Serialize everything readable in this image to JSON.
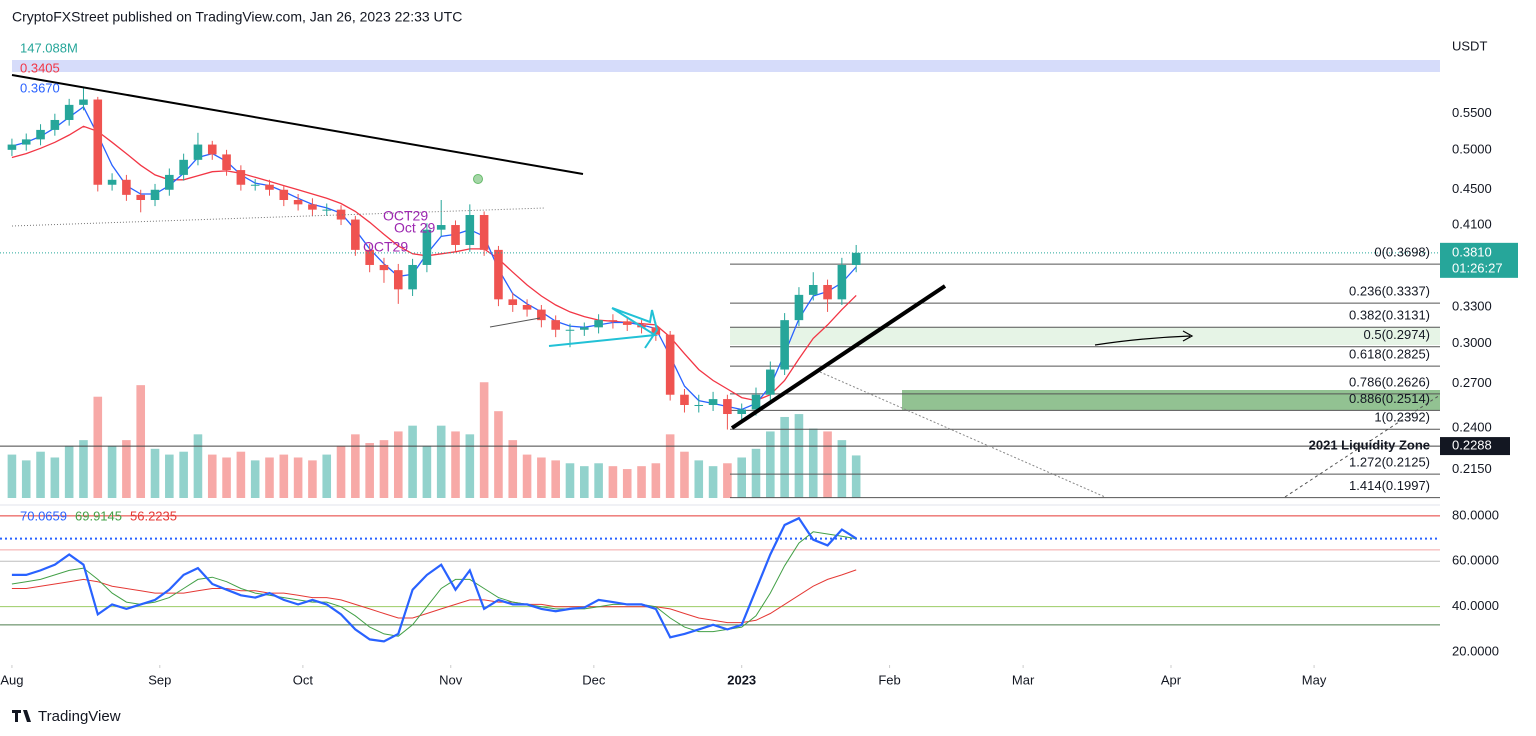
{
  "brand": "TradingView",
  "chart_data": {
    "type": "candlestick",
    "title": "CryptoFXStreet published on TradingView.com, Jan 26, 2023 22:33 UTC",
    "y_axis_label": "USDT",
    "log_scale": true,
    "grid": false,
    "up_color": "#26a69a",
    "down_color": "#ef5350",
    "xlim": [
      -2.5,
      299.4
    ],
    "xticks": [
      {
        "value": 0,
        "label": "Aug"
      },
      {
        "value": 31,
        "label": "Sep"
      },
      {
        "value": 61,
        "label": "Oct"
      },
      {
        "value": 92,
        "label": "Nov"
      },
      {
        "value": 122,
        "label": "Dec"
      },
      {
        "value": 153,
        "label": "2023"
      },
      {
        "value": 184,
        "label": "Feb"
      },
      {
        "value": 212,
        "label": "Mar"
      },
      {
        "value": 243,
        "label": "Apr"
      },
      {
        "value": 273,
        "label": "May"
      }
    ],
    "ylim": [
      0.1995,
      0.677
    ],
    "yticks": [
      {
        "value": 0.55,
        "label": "0.5500"
      },
      {
        "value": 0.5,
        "label": "0.5000"
      },
      {
        "value": 0.45,
        "label": "0.4500"
      },
      {
        "value": 0.41,
        "label": "0.4100"
      },
      {
        "value": 0.33,
        "label": "0.3300"
      },
      {
        "value": 0.3,
        "label": "0.3000"
      },
      {
        "value": 0.27,
        "label": "0.2700"
      },
      {
        "value": 0.24,
        "label": "0.2400"
      },
      {
        "value": 0.215,
        "label": "0.2150"
      }
    ],
    "x": [
      0,
      3,
      6,
      9,
      12,
      15,
      18,
      21,
      24,
      27,
      30,
      33,
      36,
      39,
      42,
      45,
      48,
      51,
      54,
      57,
      60,
      63,
      66,
      69,
      72,
      75,
      78,
      81,
      84,
      87,
      90,
      93,
      96,
      99,
      102,
      105,
      108,
      111,
      114,
      117,
      120,
      123,
      126,
      129,
      132,
      135,
      138,
      141,
      144,
      147,
      150,
      153,
      156,
      159,
      162,
      165,
      168,
      171,
      174,
      177
    ],
    "open": [
      0.5,
      0.507,
      0.514,
      0.527,
      0.541,
      0.563,
      0.571,
      0.456,
      0.462,
      0.444,
      0.438,
      0.45,
      0.468,
      0.487,
      0.507,
      0.494,
      0.474,
      0.456,
      0.456,
      0.45,
      0.438,
      0.433,
      0.427,
      0.427,
      0.416,
      0.384,
      0.369,
      0.364,
      0.346,
      0.369,
      0.405,
      0.41,
      0.389,
      0.421,
      0.384,
      0.337,
      0.332,
      0.328,
      0.319,
      0.311,
      0.311,
      0.313,
      0.319,
      0.318,
      0.315,
      0.313,
      0.307,
      0.262,
      0.255,
      0.255,
      0.259,
      0.249,
      0.252,
      0.262,
      0.28,
      0.319,
      0.341,
      0.35,
      0.337,
      0.369
    ],
    "high": [
      0.515,
      0.522,
      0.535,
      0.55,
      0.572,
      0.589,
      0.575,
      0.47,
      0.468,
      0.45,
      0.457,
      0.476,
      0.495,
      0.523,
      0.512,
      0.5,
      0.48,
      0.463,
      0.462,
      0.455,
      0.445,
      0.44,
      0.434,
      0.432,
      0.42,
      0.39,
      0.376,
      0.37,
      0.375,
      0.412,
      0.438,
      0.415,
      0.433,
      0.425,
      0.388,
      0.343,
      0.337,
      0.332,
      0.323,
      0.316,
      0.317,
      0.324,
      0.324,
      0.322,
      0.319,
      0.317,
      0.31,
      0.266,
      0.262,
      0.264,
      0.262,
      0.256,
      0.267,
      0.286,
      0.325,
      0.348,
      0.362,
      0.355,
      0.376,
      0.389
    ],
    "low": [
      0.492,
      0.499,
      0.506,
      0.519,
      0.533,
      0.555,
      0.448,
      0.449,
      0.437,
      0.424,
      0.431,
      0.443,
      0.461,
      0.48,
      0.487,
      0.467,
      0.449,
      0.449,
      0.443,
      0.431,
      0.426,
      0.42,
      0.42,
      0.41,
      0.378,
      0.362,
      0.352,
      0.333,
      0.34,
      0.362,
      0.398,
      0.382,
      0.382,
      0.378,
      0.331,
      0.326,
      0.322,
      0.313,
      0.305,
      0.297,
      0.306,
      0.308,
      0.312,
      0.31,
      0.308,
      0.302,
      0.258,
      0.25,
      0.25,
      0.251,
      0.239,
      0.245,
      0.248,
      0.258,
      0.276,
      0.314,
      0.336,
      0.326,
      0.332,
      0.362
    ],
    "close": [
      0.507,
      0.514,
      0.527,
      0.541,
      0.563,
      0.571,
      0.456,
      0.462,
      0.444,
      0.438,
      0.45,
      0.468,
      0.487,
      0.507,
      0.494,
      0.474,
      0.456,
      0.456,
      0.45,
      0.438,
      0.433,
      0.427,
      0.427,
      0.416,
      0.384,
      0.369,
      0.364,
      0.346,
      0.369,
      0.405,
      0.41,
      0.389,
      0.421,
      0.384,
      0.337,
      0.332,
      0.328,
      0.319,
      0.311,
      0.311,
      0.313,
      0.319,
      0.318,
      0.315,
      0.313,
      0.307,
      0.262,
      0.255,
      0.255,
      0.259,
      0.249,
      0.252,
      0.262,
      0.28,
      0.319,
      0.341,
      0.35,
      0.337,
      0.369,
      0.381
    ],
    "volume": {
      "ylim": [
        0,
        1600
      ],
      "legend_label": "147.088M",
      "color": "#26a69a",
      "values": [
        150,
        130,
        160,
        140,
        180,
        200,
        350,
        180,
        200,
        390,
        170,
        150,
        160,
        220,
        150,
        140,
        160,
        130,
        140,
        150,
        140,
        130,
        150,
        180,
        220,
        190,
        200,
        230,
        250,
        180,
        250,
        230,
        220,
        400,
        300,
        200,
        150,
        140,
        130,
        120,
        110,
        120,
        110,
        100,
        110,
        120,
        220,
        160,
        130,
        110,
        120,
        140,
        170,
        230,
        280,
        290,
        240,
        230,
        200,
        147.088
      ]
    },
    "moving_averages": [
      {
        "color": "#f23645",
        "legend_label": "0.3405",
        "values": [
          0.49,
          0.495,
          0.502,
          0.51,
          0.52,
          0.532,
          0.525,
          0.51,
          0.495,
          0.48,
          0.468,
          0.462,
          0.462,
          0.467,
          0.472,
          0.473,
          0.47,
          0.465,
          0.46,
          0.455,
          0.45,
          0.445,
          0.44,
          0.434,
          0.425,
          0.413,
          0.4,
          0.388,
          0.38,
          0.378,
          0.38,
          0.382,
          0.385,
          0.385,
          0.375,
          0.362,
          0.35,
          0.34,
          0.332,
          0.326,
          0.322,
          0.319,
          0.318,
          0.317,
          0.316,
          0.315,
          0.305,
          0.292,
          0.28,
          0.272,
          0.266,
          0.26,
          0.258,
          0.262,
          0.272,
          0.288,
          0.304,
          0.315,
          0.328,
          0.3405
        ]
      },
      {
        "color": "#2962ff",
        "legend_label": "0.3670",
        "values": [
          0.505,
          0.51,
          0.518,
          0.53,
          0.545,
          0.56,
          0.52,
          0.48,
          0.455,
          0.445,
          0.445,
          0.455,
          0.47,
          0.49,
          0.495,
          0.485,
          0.468,
          0.458,
          0.455,
          0.448,
          0.44,
          0.433,
          0.429,
          0.423,
          0.405,
          0.385,
          0.37,
          0.358,
          0.36,
          0.38,
          0.398,
          0.4,
          0.405,
          0.398,
          0.365,
          0.342,
          0.333,
          0.326,
          0.318,
          0.314,
          0.313,
          0.315,
          0.317,
          0.317,
          0.315,
          0.312,
          0.29,
          0.268,
          0.258,
          0.256,
          0.254,
          0.252,
          0.256,
          0.268,
          0.292,
          0.32,
          0.34,
          0.344,
          0.352,
          0.367
        ]
      }
    ],
    "current_price": {
      "value": 0.381,
      "label": "0.3810",
      "countdown": "01:26:27",
      "color": "#26a69a"
    },
    "liquidity_zone": {
      "label": "2021 Liquidity Zone",
      "value": 0.2288
    },
    "fib": {
      "color": "#555555",
      "values": [
        0.3698,
        0.3337,
        0.3131,
        0.2974,
        0.2825,
        0.2626,
        0.2514,
        0.2392,
        0.2125,
        0.1997
      ],
      "value_labels": [
        "0(0.3698)",
        "0.236(0.3337)",
        "0.382(0.3131)",
        "0.5(0.2974)",
        "0.618(0.2825)",
        "0.786(0.2626)",
        "0.886(0.2514)",
        "1(0.2392)",
        "1.272(0.2125)",
        "1.414(0.1997)"
      ]
    },
    "annotations": [
      "OCT29",
      "Oct 29",
      "OCT29"
    ],
    "rsi": {
      "ylim": [
        14.3,
        84.8
      ],
      "yticks": [
        {
          "value": 80,
          "label": "80.0000"
        },
        {
          "value": 60,
          "label": "60.0000"
        },
        {
          "value": 40,
          "label": "40.0000"
        },
        {
          "value": 20,
          "label": "20.0000"
        }
      ],
      "levels": [
        80,
        70,
        65,
        60,
        40,
        32
      ],
      "level_colors": [
        "#e53935",
        "#2962ff",
        "#f4a6a6",
        "#bdbdbd",
        "#9ccc65",
        "#4e7d4e"
      ],
      "series": [
        {
          "color": "#2962ff",
          "values": [
            54,
            54,
            56,
            58.5,
            63,
            58.5,
            36.6,
            41,
            39,
            41,
            43,
            47.5,
            54,
            57,
            50,
            47.5,
            45,
            44,
            46,
            43,
            41,
            43,
            41,
            36.6,
            30,
            25.6,
            24.7,
            28,
            47.5,
            54,
            58.5,
            47.5,
            56,
            39,
            43,
            41,
            41,
            39,
            38,
            39,
            39.6,
            43,
            42,
            41,
            41,
            39,
            26.5,
            28,
            30,
            32,
            30,
            32,
            47.5,
            63,
            76,
            79,
            69.5,
            67,
            74,
            70.0659
          ]
        },
        {
          "color": "#43a047",
          "values": [
            50,
            51,
            52,
            54,
            56,
            57,
            52,
            46,
            42,
            41,
            42,
            44,
            48,
            52,
            53,
            51,
            48,
            46,
            45,
            44,
            43,
            42,
            42,
            40,
            36,
            31,
            28,
            27,
            32,
            40,
            48,
            52,
            52,
            48,
            44,
            42,
            41,
            40,
            39,
            39,
            39,
            40,
            41,
            41,
            41,
            40,
            35,
            31,
            29,
            29,
            30,
            31,
            36,
            46,
            58,
            68,
            73,
            72,
            71,
            69.9145
          ]
        },
        {
          "color": "#e53935",
          "values": [
            48,
            48,
            49,
            50,
            51,
            52,
            51,
            49,
            48,
            47,
            46,
            46,
            46,
            47,
            48,
            48,
            47,
            47,
            46,
            46,
            45,
            44,
            44,
            43,
            41,
            39,
            37,
            35,
            35,
            37,
            39,
            41,
            43,
            43,
            42,
            42,
            41,
            41,
            40,
            40,
            40,
            40,
            40,
            40,
            40,
            40,
            39,
            37,
            35,
            34,
            33,
            33,
            34,
            37,
            41,
            45,
            49,
            52,
            54,
            56.2235
          ]
        }
      ]
    }
  }
}
